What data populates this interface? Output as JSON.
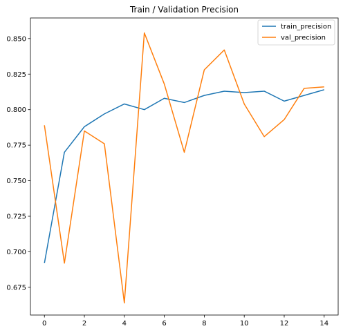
{
  "chart_data": {
    "type": "line",
    "title": "Train / Validation Precision",
    "xlabel": "",
    "ylabel": "",
    "x": [
      0,
      1,
      2,
      3,
      4,
      5,
      6,
      7,
      8,
      9,
      10,
      11,
      12,
      13,
      14
    ],
    "xlim": [
      -0.7,
      14.7
    ],
    "ylim": [
      0.6555,
      0.8645
    ],
    "xticks": [
      0,
      2,
      4,
      6,
      8,
      10,
      12,
      14
    ],
    "xtick_labels": [
      "0",
      "2",
      "4",
      "6",
      "8",
      "10",
      "12",
      "14"
    ],
    "yticks": [
      0.675,
      0.7,
      0.725,
      0.75,
      0.775,
      0.8,
      0.825,
      0.85
    ],
    "ytick_labels": [
      "0.675",
      "0.700",
      "0.725",
      "0.750",
      "0.775",
      "0.800",
      "0.825",
      "0.850"
    ],
    "grid": false,
    "legend_position": "top-right",
    "series": [
      {
        "name": "train_precision",
        "color": "#1f77b4",
        "values": [
          0.692,
          0.77,
          0.788,
          0.797,
          0.804,
          0.8,
          0.808,
          0.805,
          0.81,
          0.813,
          0.812,
          0.813,
          0.806,
          0.81,
          0.814
        ]
      },
      {
        "name": "val_precision",
        "color": "#ff7f0e",
        "values": [
          0.789,
          0.692,
          0.785,
          0.776,
          0.664,
          0.854,
          0.818,
          0.77,
          0.828,
          0.842,
          0.804,
          0.781,
          0.793,
          0.815,
          0.816
        ]
      }
    ]
  }
}
